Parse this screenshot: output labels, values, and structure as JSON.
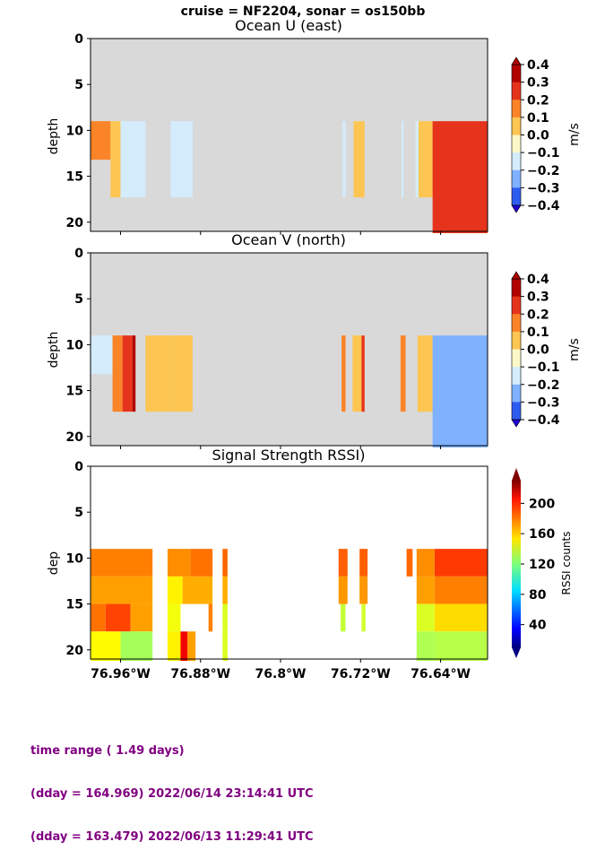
{
  "suptitle": "cruise = NF2204,  sonar = os150bb",
  "colors": {
    "missing": "#d9d9d9",
    "uv_levels": [
      "#1e00d8",
      "#2f5cf0",
      "#7fb1ff",
      "#d4ecfc",
      "#fef8c8",
      "#fdc552",
      "#fb8428",
      "#e6341c",
      "#b20000"
    ]
  },
  "chart_data": [
    {
      "type": "heatmap",
      "title": "Ocean U (east)",
      "ylabel": "depth",
      "yticks": [
        "0",
        "5",
        "10",
        "15",
        "20"
      ],
      "ylim": [
        21,
        0
      ],
      "xticks": [],
      "colorbar": {
        "label": "m/s",
        "ticks": [
          "0.4",
          "0.3",
          "0.2",
          "0.1",
          "0.0",
          "−0.1",
          "−0.2",
          "−0.3",
          "−0.4"
        ],
        "range": [
          -0.4,
          0.4
        ],
        "extend": "both"
      },
      "blocks": [
        {
          "x0": 76.99,
          "x1": 76.97,
          "top": 9,
          "bottom": 13.2,
          "value": 0.15
        },
        {
          "x0": 76.97,
          "x1": 76.96,
          "top": 9,
          "bottom": 17.3,
          "value": 0.05
        },
        {
          "x0": 76.96,
          "x1": 76.935,
          "top": 9,
          "bottom": 17.3,
          "value": -0.05
        },
        {
          "x0": 76.91,
          "x1": 76.888,
          "top": 9,
          "bottom": 17.3,
          "value": -0.05
        },
        {
          "x0": 76.738,
          "x1": 76.735,
          "top": 9,
          "bottom": 17.3,
          "value": -0.05
        },
        {
          "x0": 76.727,
          "x1": 76.716,
          "top": 9,
          "bottom": 17.3,
          "value": 0.05
        },
        {
          "x0": 76.679,
          "x1": 76.677,
          "top": 9,
          "bottom": 17.3,
          "value": -0.05
        },
        {
          "x0": 76.665,
          "x1": 76.662,
          "top": 9,
          "bottom": 17.3,
          "value": -0.05
        },
        {
          "x0": 76.662,
          "x1": 76.648,
          "top": 9,
          "bottom": 17.3,
          "value": 0.05
        },
        {
          "x0": 76.648,
          "x1": 76.593,
          "top": 9,
          "bottom": 21.2,
          "value": 0.25
        }
      ]
    },
    {
      "type": "heatmap",
      "title": "Ocean V (north)",
      "ylabel": "depth",
      "yticks": [
        "0",
        "5",
        "10",
        "15",
        "20"
      ],
      "ylim": [
        21,
        0
      ],
      "xticks": [],
      "colorbar": {
        "label": "m/s",
        "ticks": [
          "0.4",
          "0.3",
          "0.2",
          "0.1",
          "0.0",
          "−0.1",
          "−0.2",
          "−0.3",
          "−0.4"
        ],
        "range": [
          -0.4,
          0.4
        ],
        "extend": "both"
      },
      "blocks": [
        {
          "x0": 76.99,
          "x1": 76.968,
          "top": 9,
          "bottom": 13.2,
          "value": -0.05
        },
        {
          "x0": 76.968,
          "x1": 76.958,
          "top": 9,
          "bottom": 17.3,
          "value": 0.15
        },
        {
          "x0": 76.958,
          "x1": 76.948,
          "top": 9,
          "bottom": 17.3,
          "value": 0.25
        },
        {
          "x0": 76.948,
          "x1": 76.945,
          "top": 9,
          "bottom": 17.3,
          "value": 0.35
        },
        {
          "x0": 76.935,
          "x1": 76.91,
          "top": 9,
          "bottom": 17.3,
          "value": 0.05
        },
        {
          "x0": 76.91,
          "x1": 76.888,
          "top": 9,
          "bottom": 17.3,
          "value": 0.05
        },
        {
          "x0": 76.739,
          "x1": 76.735,
          "top": 9,
          "bottom": 17.3,
          "value": 0.15
        },
        {
          "x0": 76.728,
          "x1": 76.716,
          "top": 9,
          "bottom": 17.3,
          "value": 0.05
        },
        {
          "x0": 76.719,
          "x1": 76.716,
          "top": 9,
          "bottom": 17.3,
          "value": 0.2
        },
        {
          "x0": 76.68,
          "x1": 76.675,
          "top": 9,
          "bottom": 17.3,
          "value": 0.15
        },
        {
          "x0": 76.663,
          "x1": 76.648,
          "top": 9,
          "bottom": 17.3,
          "value": 0.05
        },
        {
          "x0": 76.648,
          "x1": 76.593,
          "top": 9,
          "bottom": 21.2,
          "value": -0.15
        }
      ]
    },
    {
      "type": "heatmap",
      "title": "Signal Strength RSSI)",
      "ylabel": "dep",
      "yticks": [
        "0",
        "5",
        "10",
        "15",
        "20"
      ],
      "ylim": [
        21,
        0
      ],
      "xlabel": "",
      "xticks": [
        "76.96°W",
        "76.88°W",
        "76.8°W",
        "76.72°W",
        "76.64°W"
      ],
      "xtick_values": [
        76.96,
        76.88,
        76.8,
        76.72,
        76.64
      ],
      "xlim": [
        76.99,
        76.593
      ],
      "colorbar": {
        "label": "RSSI counts",
        "ticks": [
          "200",
          "160",
          "120",
          "80",
          "40"
        ],
        "tick_values": [
          200,
          160,
          120,
          80,
          40
        ],
        "range": [
          10,
          230
        ],
        "extend": "min"
      },
      "rows": [
        {
          "top": 9,
          "bottom": 12,
          "cells": [
            {
              "x0": 76.99,
              "x1": 76.928,
              "value": 175
            },
            {
              "x0": 76.913,
              "x1": 76.89,
              "value": 172
            },
            {
              "x0": 76.89,
              "x1": 76.868,
              "value": 178
            },
            {
              "x0": 76.858,
              "x1": 76.853,
              "value": 180
            },
            {
              "x0": 76.742,
              "x1": 76.733,
              "value": 182
            },
            {
              "x0": 76.721,
              "x1": 76.713,
              "value": 182
            },
            {
              "x0": 76.674,
              "x1": 76.668,
              "value": 180
            },
            {
              "x0": 76.664,
              "x1": 76.646,
              "value": 172
            },
            {
              "x0": 76.646,
              "x1": 76.593,
              "value": 190
            }
          ]
        },
        {
          "top": 12,
          "bottom": 15,
          "cells": [
            {
              "x0": 76.99,
              "x1": 76.928,
              "value": 168
            },
            {
              "x0": 76.913,
              "x1": 76.898,
              "value": 150
            },
            {
              "x0": 76.898,
              "x1": 76.868,
              "value": 165
            },
            {
              "x0": 76.858,
              "x1": 76.853,
              "value": 165
            },
            {
              "x0": 76.742,
              "x1": 76.733,
              "value": 170
            },
            {
              "x0": 76.721,
              "x1": 76.713,
              "value": 170
            },
            {
              "x0": 76.664,
              "x1": 76.646,
              "value": 168
            },
            {
              "x0": 76.646,
              "x1": 76.593,
              "value": 175
            }
          ]
        },
        {
          "top": 15,
          "bottom": 18,
          "cells": [
            {
              "x0": 76.99,
              "x1": 76.975,
              "value": 178
            },
            {
              "x0": 76.975,
              "x1": 76.95,
              "value": 188
            },
            {
              "x0": 76.95,
              "x1": 76.928,
              "value": 168
            },
            {
              "x0": 76.913,
              "x1": 76.9,
              "value": 145
            },
            {
              "x0": 76.872,
              "x1": 76.868,
              "value": 175
            },
            {
              "x0": 76.858,
              "x1": 76.853,
              "value": 140
            },
            {
              "x0": 76.74,
              "x1": 76.735,
              "value": 135
            },
            {
              "x0": 76.719,
              "x1": 76.715,
              "value": 138
            },
            {
              "x0": 76.664,
              "x1": 76.646,
              "value": 140
            },
            {
              "x0": 76.646,
              "x1": 76.593,
              "value": 155
            }
          ]
        },
        {
          "top": 18,
          "bottom": 21.2,
          "cells": [
            {
              "x0": 76.99,
              "x1": 76.96,
              "value": 148
            },
            {
              "x0": 76.96,
              "x1": 76.928,
              "value": 128
            },
            {
              "x0": 76.913,
              "x1": 76.9,
              "value": 150
            },
            {
              "x0": 76.9,
              "x1": 76.893,
              "value": 205
            },
            {
              "x0": 76.893,
              "x1": 76.885,
              "value": 168
            },
            {
              "x0": 76.858,
              "x1": 76.853,
              "value": 140
            },
            {
              "x0": 76.664,
              "x1": 76.646,
              "value": 130
            },
            {
              "x0": 76.646,
              "x1": 76.593,
              "value": 132
            }
          ]
        }
      ]
    }
  ],
  "footer": {
    "line1": "time range ( 1.49 days)",
    "line2": "(dday = 164.969) 2022/06/14 23:14:41 UTC",
    "line3": "(dday = 163.479) 2022/06/13 11:29:41 UTC"
  }
}
